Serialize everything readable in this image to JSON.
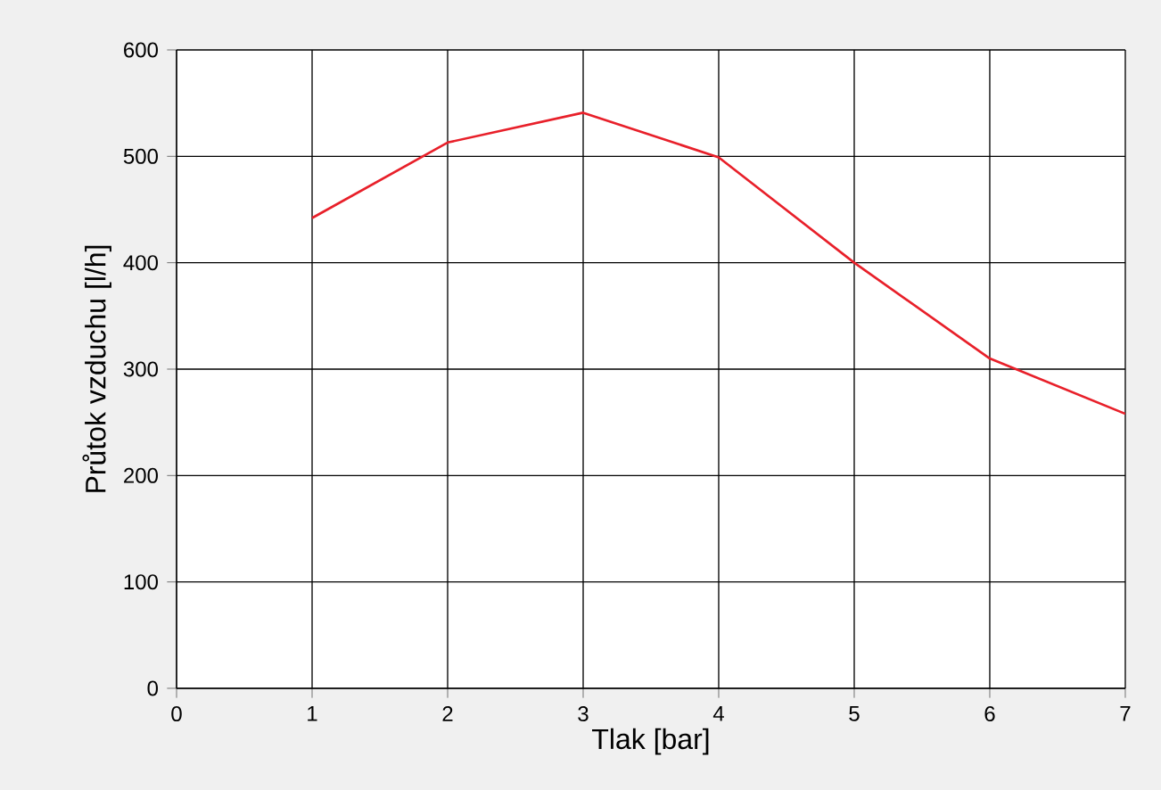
{
  "chart_data": {
    "type": "line",
    "xlabel": "Tlak [bar]",
    "ylabel": "Průtok vzduchu [l/h]",
    "x": [
      1,
      2,
      3,
      4,
      5,
      6,
      7
    ],
    "series": [
      {
        "color": "#e8202a",
        "values": [
          442,
          513,
          541,
          499,
          400,
          310,
          258
        ]
      }
    ],
    "xlim": [
      0,
      7
    ],
    "ylim": [
      0,
      600
    ],
    "xticks": [
      0,
      1,
      2,
      3,
      4,
      5,
      6,
      7
    ],
    "yticks": [
      0,
      100,
      200,
      300,
      400,
      500,
      600
    ],
    "grid": true,
    "marker": "none",
    "line_style": "solid"
  }
}
